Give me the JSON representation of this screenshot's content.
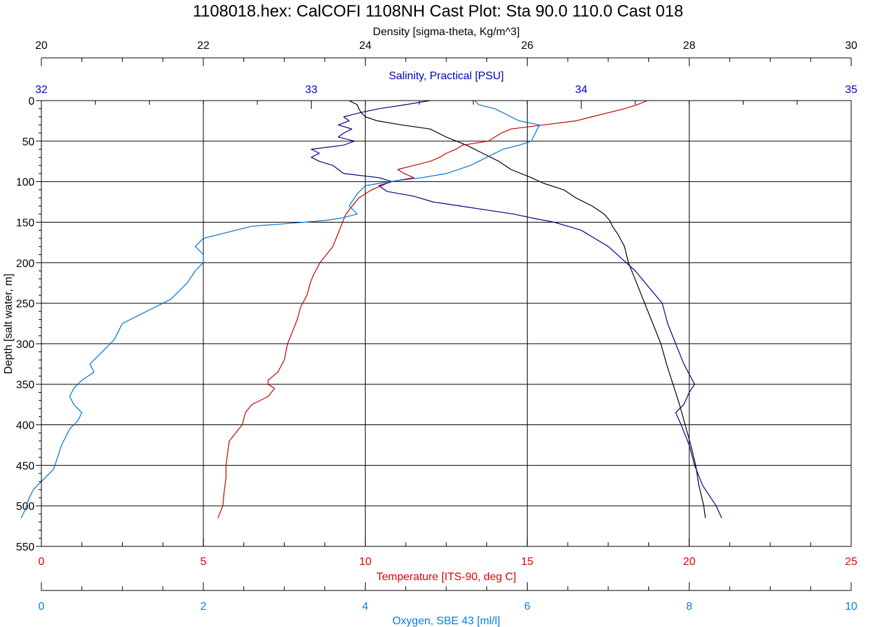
{
  "chart_data": {
    "type": "line",
    "title": "1108018.hex: CalCOFI 1108NH Cast Plot: Sta 90.0 110.0 Cast 018",
    "y_axis": {
      "label": "Depth [salt water, m]",
      "range": [
        0,
        550
      ],
      "inverted": true,
      "ticks": [
        0,
        50,
        100,
        150,
        200,
        250,
        300,
        350,
        400,
        450,
        500,
        550
      ],
      "grid": true
    },
    "x_axes": [
      {
        "id": "density",
        "label": "Density [sigma-theta, Kg/m^3]",
        "range": [
          20,
          30
        ],
        "ticks": [
          20,
          22,
          24,
          26,
          28,
          30
        ],
        "position": "top",
        "color": "#000000",
        "grid": true
      },
      {
        "id": "salinity",
        "label": "Salinity, Practical [PSU]",
        "range": [
          32,
          35
        ],
        "ticks": [
          32,
          33,
          34,
          35
        ],
        "position": "top",
        "color": "#0000c0"
      },
      {
        "id": "temperature",
        "label": "Temperature [ITS-90, deg C]",
        "range": [
          0,
          25
        ],
        "ticks": [
          0,
          5,
          10,
          15,
          20,
          25
        ],
        "position": "bottom",
        "color": "#e00000"
      },
      {
        "id": "oxygen",
        "label": "Oxygen, SBE 43 [ml/l]",
        "range": [
          0,
          10
        ],
        "ticks": [
          0,
          2,
          4,
          6,
          8,
          10
        ],
        "position": "bottom",
        "color": "#0080e0"
      }
    ],
    "series": [
      {
        "axis": "density",
        "color": "#000000",
        "points": [
          [
            23.8,
            0
          ],
          [
            23.9,
            5
          ],
          [
            23.92,
            10
          ],
          [
            23.95,
            15
          ],
          [
            24.0,
            20
          ],
          [
            24.15,
            25
          ],
          [
            24.45,
            30
          ],
          [
            24.8,
            35
          ],
          [
            25.0,
            45
          ],
          [
            25.25,
            55
          ],
          [
            25.45,
            65
          ],
          [
            25.65,
            75
          ],
          [
            25.8,
            85
          ],
          [
            26.05,
            95
          ],
          [
            26.2,
            102
          ],
          [
            26.45,
            110
          ],
          [
            26.6,
            120
          ],
          [
            26.8,
            130
          ],
          [
            26.95,
            140
          ],
          [
            27.02,
            148
          ],
          [
            27.05,
            155
          ],
          [
            27.12,
            165
          ],
          [
            27.2,
            180
          ],
          [
            27.25,
            200
          ],
          [
            27.35,
            225
          ],
          [
            27.45,
            250
          ],
          [
            27.55,
            275
          ],
          [
            27.65,
            300
          ],
          [
            27.72,
            325
          ],
          [
            27.8,
            350
          ],
          [
            27.88,
            375
          ],
          [
            27.95,
            400
          ],
          [
            28.02,
            425
          ],
          [
            28.08,
            450
          ],
          [
            28.12,
            475
          ],
          [
            28.18,
            500
          ],
          [
            28.2,
            515
          ]
        ]
      },
      {
        "axis": "salinity",
        "color": "#000080",
        "points": [
          [
            33.44,
            0
          ],
          [
            33.35,
            5
          ],
          [
            33.25,
            10
          ],
          [
            33.18,
            15
          ],
          [
            33.12,
            20
          ],
          [
            33.14,
            25
          ],
          [
            33.1,
            30
          ],
          [
            33.15,
            35
          ],
          [
            33.12,
            40
          ],
          [
            33.1,
            45
          ],
          [
            33.16,
            50
          ],
          [
            33.12,
            55
          ],
          [
            33.0,
            60
          ],
          [
            33.03,
            65
          ],
          [
            33.0,
            70
          ],
          [
            33.03,
            75
          ],
          [
            33.08,
            80
          ],
          [
            33.1,
            85
          ],
          [
            33.12,
            90
          ],
          [
            33.25,
            95
          ],
          [
            33.3,
            100
          ],
          [
            33.25,
            105
          ],
          [
            33.28,
            112
          ],
          [
            33.38,
            118
          ],
          [
            33.45,
            125
          ],
          [
            33.55,
            130
          ],
          [
            33.65,
            135
          ],
          [
            33.75,
            140
          ],
          [
            33.82,
            145
          ],
          [
            33.9,
            150
          ],
          [
            33.95,
            155
          ],
          [
            34.0,
            160
          ],
          [
            34.05,
            170
          ],
          [
            34.1,
            180
          ],
          [
            34.15,
            195
          ],
          [
            34.2,
            210
          ],
          [
            34.25,
            230
          ],
          [
            34.3,
            250
          ],
          [
            34.32,
            275
          ],
          [
            34.35,
            300
          ],
          [
            34.38,
            325
          ],
          [
            34.42,
            350
          ],
          [
            34.4,
            360
          ],
          [
            34.38,
            375
          ],
          [
            34.35,
            385
          ],
          [
            34.37,
            400
          ],
          [
            34.4,
            425
          ],
          [
            34.42,
            450
          ],
          [
            34.45,
            475
          ],
          [
            34.5,
            500
          ],
          [
            34.52,
            515
          ]
        ]
      },
      {
        "axis": "temperature",
        "color": "#c00000",
        "points": [
          [
            18.7,
            0
          ],
          [
            18.4,
            5
          ],
          [
            18.0,
            10
          ],
          [
            17.5,
            15
          ],
          [
            17.0,
            20
          ],
          [
            16.5,
            25
          ],
          [
            15.5,
            30
          ],
          [
            14.5,
            35
          ],
          [
            14.2,
            40
          ],
          [
            14.0,
            45
          ],
          [
            13.8,
            50
          ],
          [
            13.0,
            55
          ],
          [
            12.8,
            60
          ],
          [
            12.5,
            65
          ],
          [
            12.3,
            70
          ],
          [
            12.0,
            75
          ],
          [
            11.5,
            80
          ],
          [
            11.0,
            85
          ],
          [
            11.2,
            90
          ],
          [
            11.5,
            95
          ],
          [
            10.8,
            100
          ],
          [
            10.5,
            105
          ],
          [
            10.2,
            110
          ],
          [
            9.8,
            120
          ],
          [
            9.6,
            130
          ],
          [
            9.4,
            140
          ],
          [
            9.3,
            150
          ],
          [
            9.2,
            160
          ],
          [
            9.1,
            170
          ],
          [
            9.0,
            180
          ],
          [
            8.8,
            190
          ],
          [
            8.6,
            200
          ],
          [
            8.4,
            215
          ],
          [
            8.3,
            225
          ],
          [
            8.2,
            240
          ],
          [
            8.0,
            255
          ],
          [
            7.9,
            270
          ],
          [
            7.8,
            280
          ],
          [
            7.6,
            300
          ],
          [
            7.5,
            320
          ],
          [
            7.3,
            335
          ],
          [
            7.0,
            345
          ],
          [
            7.0,
            350
          ],
          [
            7.2,
            355
          ],
          [
            7.0,
            365
          ],
          [
            6.5,
            375
          ],
          [
            6.3,
            385
          ],
          [
            6.2,
            400
          ],
          [
            6.0,
            410
          ],
          [
            5.8,
            420
          ],
          [
            5.75,
            435
          ],
          [
            5.7,
            450
          ],
          [
            5.7,
            465
          ],
          [
            5.65,
            480
          ],
          [
            5.6,
            500
          ],
          [
            5.45,
            515
          ]
        ]
      },
      {
        "axis": "oxygen",
        "color": "#0070d0",
        "points": [
          [
            5.35,
            0
          ],
          [
            5.4,
            5
          ],
          [
            5.6,
            10
          ],
          [
            5.8,
            20
          ],
          [
            5.9,
            25
          ],
          [
            6.15,
            30
          ],
          [
            6.1,
            40
          ],
          [
            6.05,
            50
          ],
          [
            5.9,
            55
          ],
          [
            5.7,
            60
          ],
          [
            5.5,
            70
          ],
          [
            5.3,
            80
          ],
          [
            5.0,
            90
          ],
          [
            4.7,
            95
          ],
          [
            4.3,
            100
          ],
          [
            4.0,
            105
          ],
          [
            3.9,
            115
          ],
          [
            3.8,
            130
          ],
          [
            3.9,
            140
          ],
          [
            3.7,
            145
          ],
          [
            3.5,
            148
          ],
          [
            3.0,
            152
          ],
          [
            2.6,
            155
          ],
          [
            2.4,
            160
          ],
          [
            2.2,
            165
          ],
          [
            2.0,
            170
          ],
          [
            1.9,
            180
          ],
          [
            2.0,
            190
          ],
          [
            2.0,
            200
          ],
          [
            1.9,
            210
          ],
          [
            1.8,
            225
          ],
          [
            1.7,
            235
          ],
          [
            1.6,
            245
          ],
          [
            1.4,
            255
          ],
          [
            1.2,
            265
          ],
          [
            1.0,
            275
          ],
          [
            0.95,
            285
          ],
          [
            0.9,
            295
          ],
          [
            0.8,
            305
          ],
          [
            0.7,
            315
          ],
          [
            0.6,
            325
          ],
          [
            0.65,
            335
          ],
          [
            0.5,
            345
          ],
          [
            0.4,
            355
          ],
          [
            0.35,
            365
          ],
          [
            0.4,
            375
          ],
          [
            0.5,
            385
          ],
          [
            0.45,
            395
          ],
          [
            0.35,
            405
          ],
          [
            0.3,
            415
          ],
          [
            0.25,
            425
          ],
          [
            0.2,
            440
          ],
          [
            0.15,
            455
          ],
          [
            0.0,
            470
          ],
          [
            -0.1,
            480
          ],
          [
            -0.15,
            490
          ],
          [
            -0.2,
            505
          ],
          [
            -0.25,
            515
          ]
        ]
      }
    ]
  }
}
